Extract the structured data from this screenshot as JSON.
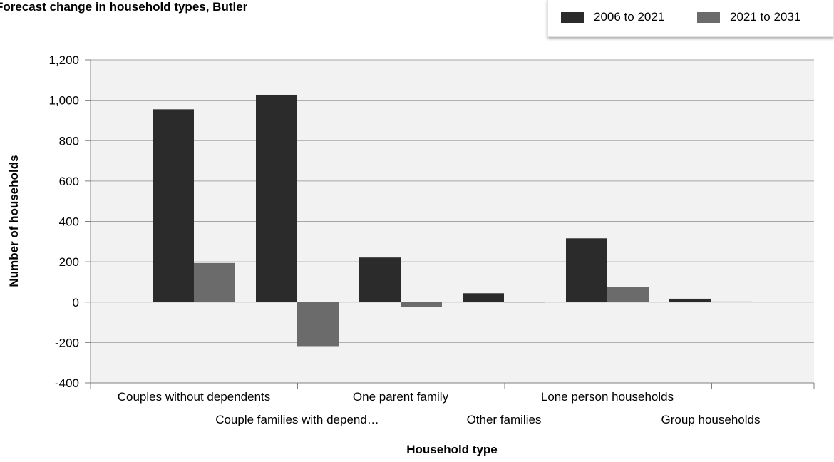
{
  "colors": {
    "series_2006_2021": "#2b2b2b",
    "series_2021_2031": "#6b6b6b",
    "plot_background": "#f2f2f2",
    "gridline": "#a6a6a6",
    "axis": "#7f7f7f"
  },
  "chart_data": {
    "type": "bar",
    "title": "Forecast change in household types, Butler",
    "xlabel": "Household type",
    "ylabel": "Number of households",
    "categories": [
      "Couples without dependents",
      "Couple families with depend…",
      "One parent family",
      "Other families",
      "Lone person households",
      "Group households"
    ],
    "series": [
      {
        "name": "2006 to 2021",
        "values": [
          955,
          1027,
          221,
          44,
          316,
          17
        ]
      },
      {
        "name": "2021 to 2031",
        "values": [
          194,
          -218,
          -25,
          0,
          74,
          3
        ]
      }
    ],
    "ylim": [
      -400,
      1200
    ],
    "yticks": [
      -400,
      -200,
      0,
      200,
      400,
      600,
      800,
      1000,
      1200
    ],
    "ytick_labels": [
      "-400",
      "-200",
      "0",
      "200",
      "400",
      "600",
      "800",
      "1,000",
      "1,200"
    ],
    "grid": true,
    "legend_position": "top-right"
  }
}
